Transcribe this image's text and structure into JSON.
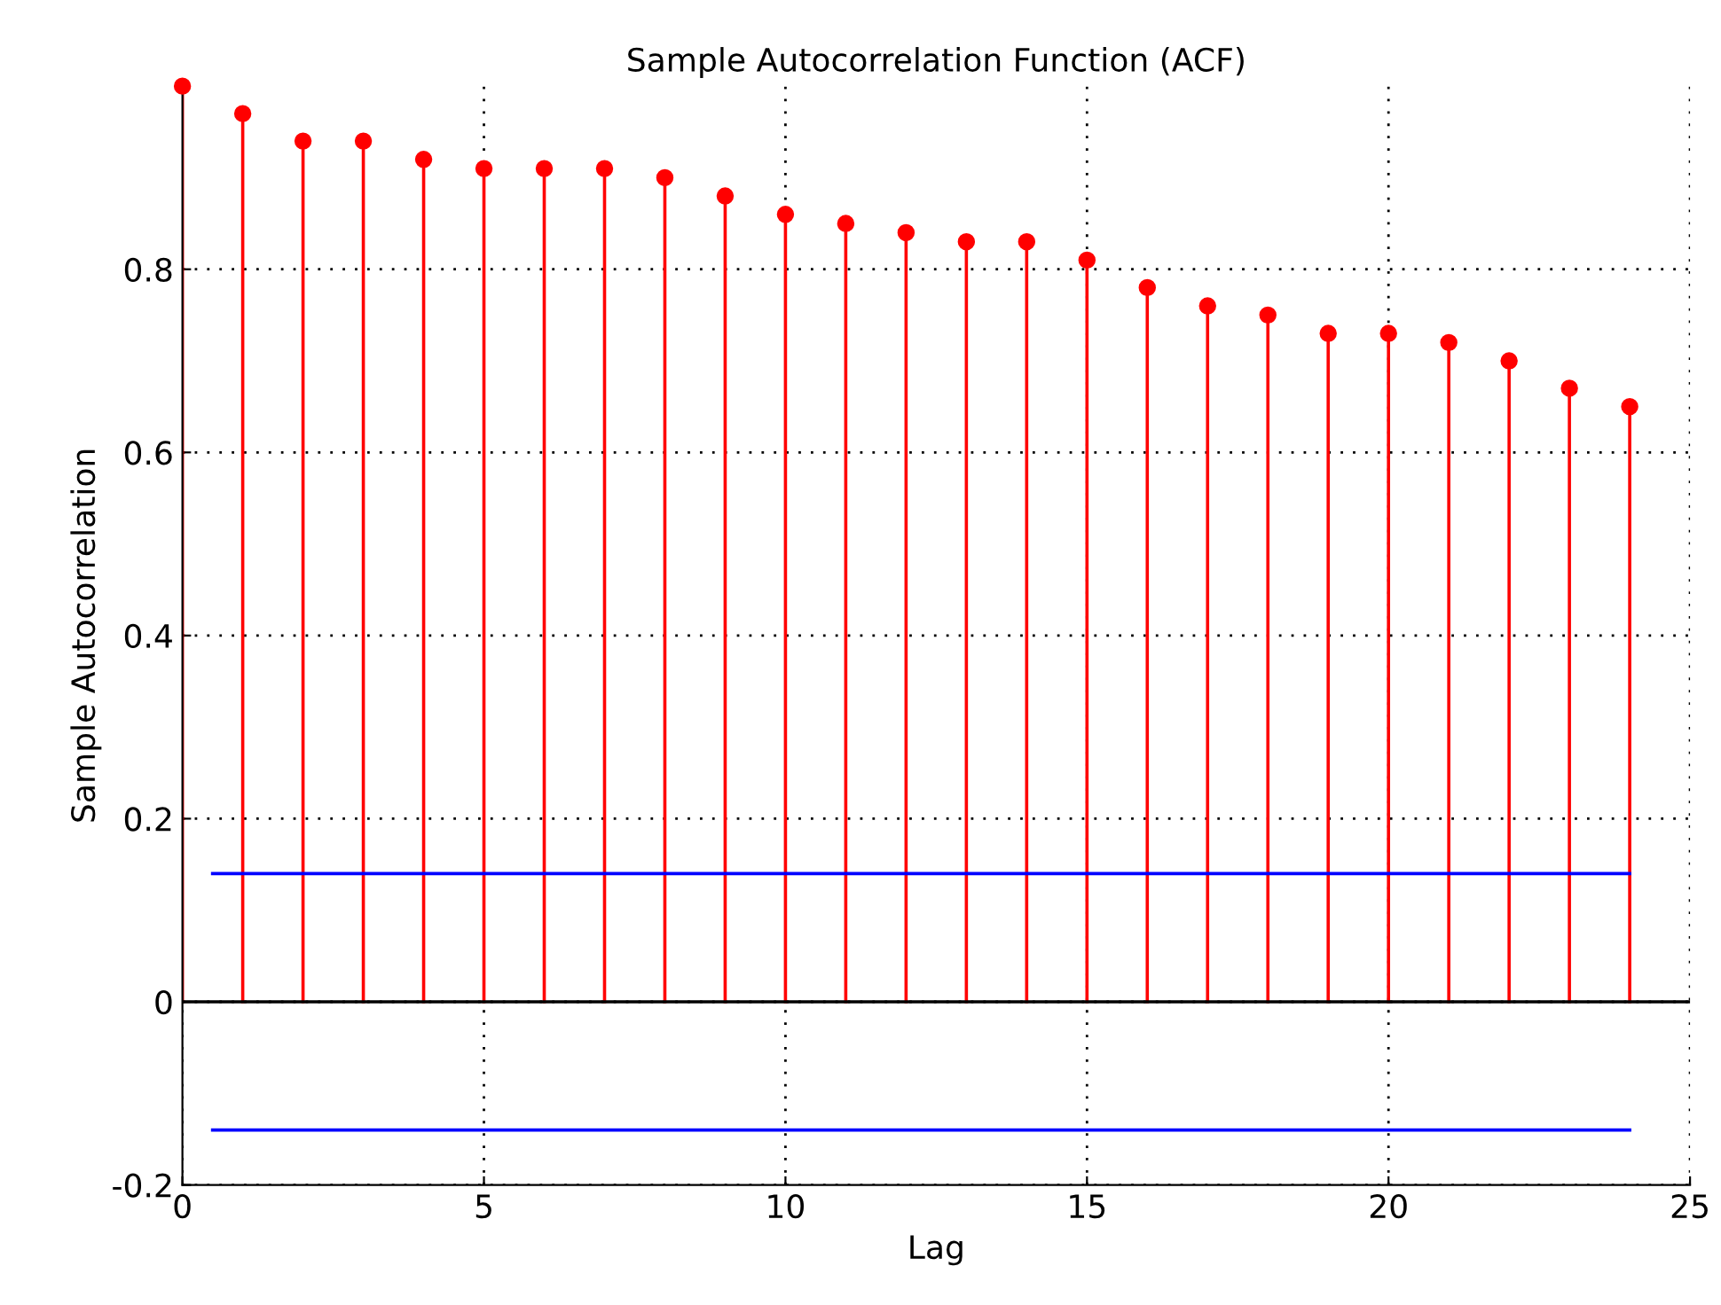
{
  "chart_data": {
    "type": "lollipop",
    "title": "Sample Autocorrelation Function (ACF)",
    "xlabel": "Lag",
    "ylabel": "Sample Autocorrelation",
    "series": [
      {
        "marker": "circle",
        "color": "#ff0000",
        "x": [
          0,
          1,
          2,
          3,
          4,
          5,
          6,
          7,
          8,
          9,
          10,
          11,
          12,
          13,
          14,
          15,
          16,
          17,
          18,
          19,
          20,
          21,
          22,
          23,
          24
        ],
        "values": [
          1.0,
          0.97,
          0.94,
          0.94,
          0.92,
          0.91,
          0.91,
          0.91,
          0.9,
          0.88,
          0.86,
          0.85,
          0.84,
          0.83,
          0.83,
          0.81,
          0.78,
          0.76,
          0.75,
          0.73,
          0.73,
          0.72,
          0.7,
          0.67,
          0.65
        ]
      },
      {
        "type": "line",
        "color": "#0000ff",
        "x": [
          0.5,
          24
        ],
        "values": [
          0.14,
          0.14
        ]
      },
      {
        "type": "line",
        "color": "#0000ff",
        "x": [
          0.5,
          24
        ],
        "values": [
          -0.14,
          -0.14
        ]
      }
    ],
    "xlim": [
      0,
      25
    ],
    "ylim": [
      -0.2,
      1
    ],
    "xticks": [
      0,
      5,
      10,
      15,
      20,
      25
    ],
    "yticks": [
      -0.2,
      0,
      0.2,
      0.4,
      0.6,
      0.8
    ],
    "grid": true,
    "line_style": "solid"
  }
}
